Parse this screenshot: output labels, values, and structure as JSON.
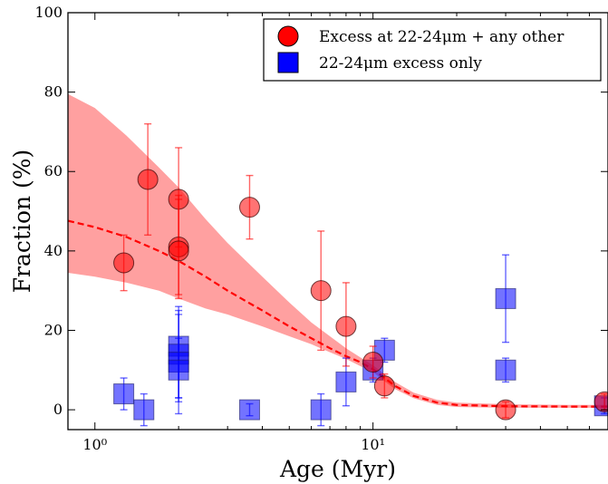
{
  "chart_data": {
    "type": "scatter",
    "xscale": "log",
    "xlim": [
      0.8,
      70
    ],
    "ylim": [
      -5,
      100
    ],
    "xlabel": "Age (Myr)",
    "ylabel": "Fraction (%)",
    "grid": false,
    "legend_position": "top-right",
    "x_ticks": [
      {
        "value": 1,
        "label": "10⁰"
      },
      {
        "value": 10,
        "label": "10¹"
      }
    ],
    "y_ticks": [
      {
        "value": 0,
        "label": "0"
      },
      {
        "value": 20,
        "label": "20"
      },
      {
        "value": 40,
        "label": "40"
      },
      {
        "value": 60,
        "label": "60"
      },
      {
        "value": 80,
        "label": "80"
      },
      {
        "value": 100,
        "label": "100"
      }
    ],
    "series": [
      {
        "name": "Excess at 22-24μm + any other",
        "marker": "circle",
        "color": "#ff0000",
        "points": [
          {
            "x": 1.27,
            "y": 37,
            "lo": 30,
            "hi": 44
          },
          {
            "x": 1.55,
            "y": 58,
            "lo": 44,
            "hi": 72
          },
          {
            "x": 2.0,
            "y": 53,
            "lo": 41,
            "hi": 66
          },
          {
            "x": 2.0,
            "y": 41,
            "lo": 28,
            "hi": 54
          },
          {
            "x": 2.0,
            "y": 40,
            "lo": 29,
            "hi": 53
          },
          {
            "x": 3.6,
            "y": 51,
            "lo": 43,
            "hi": 59
          },
          {
            "x": 6.5,
            "y": 30,
            "lo": 15,
            "hi": 45
          },
          {
            "x": 8.0,
            "y": 21,
            "lo": 11,
            "hi": 32
          },
          {
            "x": 10.0,
            "y": 12,
            "lo": 8,
            "hi": 16
          },
          {
            "x": 11.0,
            "y": 6,
            "lo": 3,
            "hi": 9
          },
          {
            "x": 30.0,
            "y": 0,
            "lo": -2,
            "hi": 2
          },
          {
            "x": 68.0,
            "y": 2,
            "lo": 0,
            "hi": 4
          }
        ]
      },
      {
        "name": "22-24μm excess only",
        "marker": "square",
        "color": "#0000ff",
        "points": [
          {
            "x": 1.27,
            "y": 4,
            "lo": 0,
            "hi": 8
          },
          {
            "x": 1.5,
            "y": 0,
            "lo": -4,
            "hi": 4
          },
          {
            "x": 2.0,
            "y": 16,
            "lo": 3,
            "hi": 26
          },
          {
            "x": 2.0,
            "y": 14,
            "lo": 2,
            "hi": 25
          },
          {
            "x": 2.0,
            "y": 12,
            "lo": -1,
            "hi": 24
          },
          {
            "x": 2.0,
            "y": 10,
            "lo": 3,
            "hi": 18
          },
          {
            "x": 3.6,
            "y": 0,
            "lo": -1.5,
            "hi": 1.5
          },
          {
            "x": 6.5,
            "y": 0,
            "lo": -4,
            "hi": 4
          },
          {
            "x": 8.0,
            "y": 7,
            "lo": 1,
            "hi": 13
          },
          {
            "x": 10.0,
            "y": 10,
            "lo": 7,
            "hi": 13
          },
          {
            "x": 11.0,
            "y": 15,
            "lo": 12,
            "hi": 18
          },
          {
            "x": 30.0,
            "y": 28,
            "lo": 17,
            "hi": 39
          },
          {
            "x": 30.0,
            "y": 10,
            "lo": 7,
            "hi": 13
          },
          {
            "x": 68.0,
            "y": 1,
            "lo": -1,
            "hi": 3
          }
        ]
      }
    ],
    "fit": {
      "color": "#ff0000",
      "style": "dashed",
      "band_color": "#ff8080",
      "points": [
        {
          "x": 0.8,
          "y": 47.6,
          "lo": 34.5,
          "hi": 79.5
        },
        {
          "x": 1.0,
          "y": 46.0,
          "lo": 33.5,
          "hi": 76.0
        },
        {
          "x": 1.3,
          "y": 43.5,
          "lo": 32.0,
          "hi": 69.0
        },
        {
          "x": 1.7,
          "y": 40.0,
          "lo": 30.0,
          "hi": 61.0
        },
        {
          "x": 2.0,
          "y": 37.5,
          "lo": 28.0,
          "hi": 56.0
        },
        {
          "x": 2.5,
          "y": 33.5,
          "lo": 25.5,
          "hi": 48.0
        },
        {
          "x": 3.0,
          "y": 30.0,
          "lo": 24.0,
          "hi": 42.0
        },
        {
          "x": 4.0,
          "y": 25.0,
          "lo": 21.0,
          "hi": 33.5
        },
        {
          "x": 5.0,
          "y": 21.0,
          "lo": 18.5,
          "hi": 27.0
        },
        {
          "x": 6.0,
          "y": 18.0,
          "lo": 16.5,
          "hi": 22.0
        },
        {
          "x": 7.0,
          "y": 15.5,
          "lo": 14.5,
          "hi": 18.5
        },
        {
          "x": 8.0,
          "y": 13.5,
          "lo": 12.8,
          "hi": 15.5
        },
        {
          "x": 9.0,
          "y": 12.0,
          "lo": 11.0,
          "hi": 13.2
        },
        {
          "x": 10.0,
          "y": 10.2,
          "lo": 9.5,
          "hi": 11.2
        },
        {
          "x": 11.0,
          "y": 8.0,
          "lo": 7.2,
          "hi": 9.0
        },
        {
          "x": 12.0,
          "y": 6.0,
          "lo": 5.2,
          "hi": 7.0
        },
        {
          "x": 14.0,
          "y": 3.5,
          "lo": 2.9,
          "hi": 4.3
        },
        {
          "x": 17.0,
          "y": 1.8,
          "lo": 1.2,
          "hi": 2.5
        },
        {
          "x": 20.0,
          "y": 1.2,
          "lo": 0.7,
          "hi": 1.8
        },
        {
          "x": 30.0,
          "y": 0.9,
          "lo": 0.5,
          "hi": 1.4
        },
        {
          "x": 50.0,
          "y": 0.8,
          "lo": 0.5,
          "hi": 1.2
        },
        {
          "x": 70.0,
          "y": 0.8,
          "lo": 0.5,
          "hi": 1.2
        }
      ]
    }
  }
}
